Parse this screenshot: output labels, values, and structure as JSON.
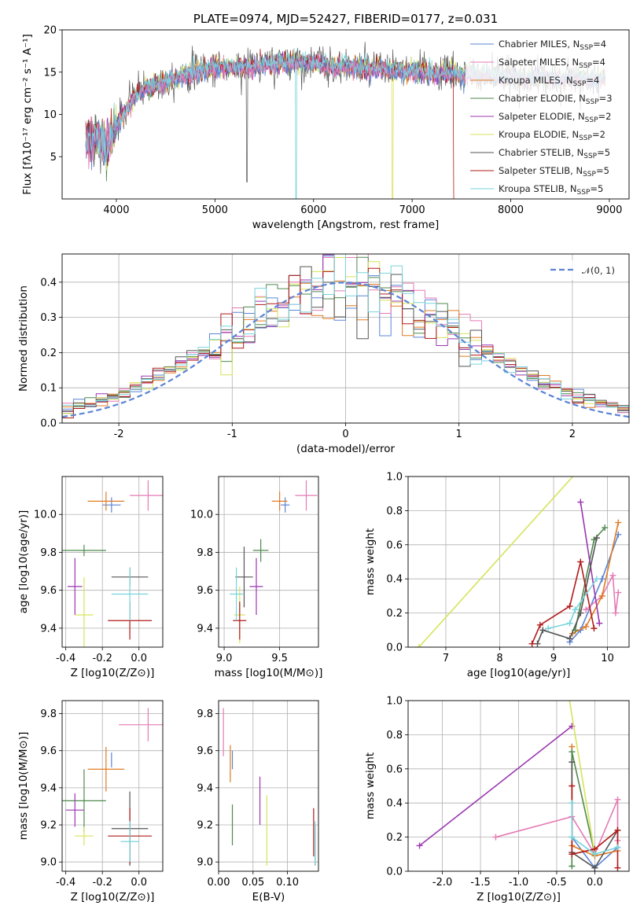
{
  "colors": [
    "#5b84d6",
    "#e57ab5",
    "#e07b22",
    "#4e8a4e",
    "#9b37b1",
    "#d7e35a",
    "#555555",
    "#b11a1a",
    "#78d4dc"
  ],
  "chart_data": [
    {
      "id": "spectrum",
      "type": "line",
      "title": "PLATE=0974, MJD=52427, FIBERID=0177, z=0.031",
      "xlabel": "wavelength [Angstrom, rest frame]",
      "ylabel": "Flux [fλ10⁻¹⁷ erg cm⁻² s⁻¹ A⁻¹]",
      "xlim": [
        3450,
        9200
      ],
      "ylim": [
        0,
        20
      ],
      "xticks": [
        4000,
        5000,
        6000,
        7000,
        8000,
        9000
      ],
      "yticks": [
        5,
        10,
        15,
        20
      ],
      "grid": false,
      "legend_position": "top-right",
      "series": [
        {
          "name": "Chabrier MILES, N_SSP=4"
        },
        {
          "name": "Salpeter MILES, N_SSP=4"
        },
        {
          "name": "Kroupa MILES, N_SSP=4"
        },
        {
          "name": "Chabrier ELODIE, N_SSP=3"
        },
        {
          "name": "Salpeter ELODIE, N_SSP=2"
        },
        {
          "name": "Kroupa ELODIE, N_SSP=2"
        },
        {
          "name": "Chabrier STELIB, N_SSP=5"
        },
        {
          "name": "Salpeter STELIB, N_SSP=5"
        },
        {
          "name": "Kroupa STELIB, N_SSP=5"
        }
      ],
      "continuum": {
        "x": [
          3700,
          3800,
          3900,
          4000,
          4100,
          4200,
          4300,
          4500,
          4700,
          5000,
          5300,
          5600,
          5900,
          6200,
          6500,
          6800,
          7100,
          7400,
          7700,
          8000,
          8300,
          8600,
          8900
        ],
        "y": [
          6.5,
          7.5,
          6.0,
          8.5,
          10.5,
          12.5,
          13.0,
          14.0,
          14.8,
          15.5,
          15.6,
          16.0,
          16.2,
          15.6,
          15.5,
          15.2,
          15.0,
          14.8,
          14.6,
          14.4,
          14.3,
          14.2,
          14.3
        ]
      }
    },
    {
      "id": "residual_hist",
      "type": "line",
      "xlabel": "(data-model)/error",
      "ylabel": "Normed distribution",
      "xlim": [
        -2.5,
        2.5
      ],
      "ylim": [
        0,
        0.48
      ],
      "xticks": [
        -2,
        -1,
        0,
        1,
        2
      ],
      "yticks": [
        0.0,
        0.1,
        0.2,
        0.3,
        0.4
      ],
      "grid": true,
      "legend_position": "top-right",
      "legend_label": "𝒩(0, 1)",
      "gaussian": {
        "mu": 0,
        "sigma": 1
      }
    },
    {
      "id": "age_vs_Z",
      "type": "scatter",
      "xlabel": "Z [log10(Z/Z⊙)]",
      "ylabel": "age  [log10(age/yr)]",
      "xlim": [
        -0.42,
        0.13
      ],
      "ylim": [
        9.3,
        10.2
      ],
      "xticks": [
        -0.4,
        -0.2,
        0.0
      ],
      "yticks": [
        9.4,
        9.6,
        9.8,
        10.0
      ],
      "grid": true,
      "points": [
        {
          "x": -0.15,
          "y": 10.05,
          "xerr": 0.05,
          "yerr": 0.04
        },
        {
          "x": 0.05,
          "y": 10.1,
          "xerr": 0.1,
          "yerr": 0.08
        },
        {
          "x": -0.18,
          "y": 10.07,
          "xerr": 0.1,
          "yerr": 0.05
        },
        {
          "x": -0.3,
          "y": 9.81,
          "xerr": 0.12,
          "yerr": 0.03
        },
        {
          "x": -0.35,
          "y": 9.62,
          "xerr": 0.04,
          "yerr": 0.15
        },
        {
          "x": -0.3,
          "y": 9.47,
          "xerr": 0.05,
          "yerr": 0.2
        },
        {
          "x": -0.05,
          "y": 9.67,
          "xerr": 0.1,
          "yerr": 0.05
        },
        {
          "x": -0.05,
          "y": 9.44,
          "xerr": 0.12,
          "yerr": 0.1
        },
        {
          "x": -0.05,
          "y": 9.58,
          "xerr": 0.1,
          "yerr": 0.14
        }
      ]
    },
    {
      "id": "age_vs_mass",
      "type": "scatter",
      "xlabel": "mass [log10(M/M⊙)]",
      "ylabel": "",
      "xlim": [
        8.95,
        9.85
      ],
      "ylim": [
        9.3,
        10.2
      ],
      "xticks": [
        9.0,
        9.5
      ],
      "yticks": [
        9.4,
        9.6,
        9.8,
        10.0
      ],
      "grid": true,
      "points": [
        {
          "x": 9.55,
          "y": 10.05,
          "xerr": 0.04,
          "yerr": 0.04
        },
        {
          "x": 9.74,
          "y": 10.1,
          "xerr": 0.1,
          "yerr": 0.08
        },
        {
          "x": 9.5,
          "y": 10.07,
          "xerr": 0.07,
          "yerr": 0.05
        },
        {
          "x": 9.33,
          "y": 9.81,
          "xerr": 0.07,
          "yerr": 0.06
        },
        {
          "x": 9.29,
          "y": 9.62,
          "xerr": 0.06,
          "yerr": 0.15
        },
        {
          "x": 9.14,
          "y": 9.47,
          "xerr": 0.05,
          "yerr": 0.15
        },
        {
          "x": 9.18,
          "y": 9.67,
          "xerr": 0.08,
          "yerr": 0.16
        },
        {
          "x": 9.14,
          "y": 9.44,
          "xerr": 0.06,
          "yerr": 0.1
        },
        {
          "x": 9.11,
          "y": 9.58,
          "xerr": 0.06,
          "yerr": 0.14
        }
      ]
    },
    {
      "id": "mass_weight_vs_age",
      "type": "line",
      "xlabel": "age  [log10(age/yr)]",
      "ylabel": "mass weight",
      "xlim": [
        6.3,
        10.4
      ],
      "ylim": [
        0,
        1.0
      ],
      "xticks": [
        7,
        8,
        9,
        10
      ],
      "yticks": [
        0.0,
        0.2,
        0.4,
        0.6,
        0.8,
        1.0
      ],
      "grid": true,
      "series": [
        {
          "x": [
            9.3,
            9.5,
            9.9,
            10.2
          ],
          "y": [
            0.03,
            0.1,
            0.4,
            0.66
          ]
        },
        {
          "x": [
            9.6,
            9.9,
            10.1,
            10.15,
            10.2
          ],
          "y": [
            0.22,
            0.3,
            0.42,
            0.2,
            0.32
          ]
        },
        {
          "x": [
            9.35,
            9.6,
            9.9,
            10.2
          ],
          "y": [
            0.08,
            0.12,
            0.3,
            0.73
          ]
        },
        {
          "x": [
            9.4,
            9.75,
            9.95
          ],
          "y": [
            0.1,
            0.63,
            0.7
          ]
        },
        {
          "x": [
            9.5,
            9.85
          ],
          "y": [
            0.85,
            0.14
          ]
        },
        {
          "x": [
            6.5,
            9.5
          ],
          "y": [
            0.0,
            1.05
          ]
        },
        {
          "x": [
            8.7,
            8.8,
            9.3,
            9.5,
            9.8
          ],
          "y": [
            0.02,
            0.1,
            0.05,
            0.2,
            0.64
          ]
        },
        {
          "x": [
            8.6,
            8.75,
            9.3,
            9.5,
            9.75
          ],
          "y": [
            0.02,
            0.13,
            0.24,
            0.5,
            0.11
          ]
        },
        {
          "x": [
            8.9,
            9.3,
            9.4,
            9.8
          ],
          "y": [
            0.11,
            0.14,
            0.22,
            0.4
          ]
        }
      ]
    },
    {
      "id": "mass_vs_Z",
      "type": "scatter",
      "xlabel": "Z [log10(Z/Z⊙)]",
      "ylabel": "mass [log10(M/M⊙)]",
      "xlim": [
        -0.42,
        0.13
      ],
      "ylim": [
        8.95,
        9.87
      ],
      "xticks": [
        -0.4,
        -0.2,
        0.0
      ],
      "yticks": [
        9.0,
        9.2,
        9.4,
        9.6,
        9.8
      ],
      "grid": true,
      "points": [
        {
          "x": -0.15,
          "y": 9.55,
          "xerr": 0.0,
          "yerr": 0.04
        },
        {
          "x": 0.05,
          "y": 9.74,
          "xerr": 0.16,
          "yerr": 0.09
        },
        {
          "x": -0.18,
          "y": 9.5,
          "xerr": 0.1,
          "yerr": 0.12
        },
        {
          "x": -0.3,
          "y": 9.33,
          "xerr": 0.12,
          "yerr": 0.17
        },
        {
          "x": -0.35,
          "y": 9.28,
          "xerr": 0.05,
          "yerr": 0.09
        },
        {
          "x": -0.3,
          "y": 9.14,
          "xerr": 0.05,
          "yerr": 0.05
        },
        {
          "x": -0.05,
          "y": 9.18,
          "xerr": 0.1,
          "yerr": 0.2
        },
        {
          "x": -0.05,
          "y": 9.14,
          "xerr": 0.12,
          "yerr": 0.15
        },
        {
          "x": -0.05,
          "y": 9.11,
          "xerr": 0.05,
          "yerr": 0.11
        }
      ]
    },
    {
      "id": "mass_vs_ebv",
      "type": "scatter",
      "xlabel": "E(B-V)",
      "ylabel": "",
      "xlim": [
        0.0,
        0.145
      ],
      "ylim": [
        8.95,
        9.87
      ],
      "xticks": [
        0.0,
        0.05,
        0.1
      ],
      "yticks": [
        9.0,
        9.2,
        9.4,
        9.6,
        9.8
      ],
      "grid": true,
      "points": [
        {
          "x": 0.02,
          "y": 9.55,
          "yerr": 0.05
        },
        {
          "x": 0.007,
          "y": 9.7,
          "yerr": 0.13
        },
        {
          "x": 0.017,
          "y": 9.53,
          "yerr": 0.1
        },
        {
          "x": 0.02,
          "y": 9.2,
          "yerr": 0.11
        },
        {
          "x": 0.06,
          "y": 9.33,
          "yerr": 0.13
        },
        {
          "x": 0.07,
          "y": 9.17,
          "yerr": 0.19
        },
        {
          "x": 0.14,
          "y": 9.09,
          "yerr": 0.11
        },
        {
          "x": 0.138,
          "y": 9.16,
          "yerr": 0.13
        },
        {
          "x": 0.14,
          "y": 9.1,
          "yerr": 0.12
        }
      ]
    },
    {
      "id": "mass_weight_vs_Z",
      "type": "line",
      "xlabel": "Z [log10(Z/Z⊙)]",
      "ylabel": "mass weight",
      "xlim": [
        -2.45,
        0.45
      ],
      "ylim": [
        0,
        1.0
      ],
      "xticks": [
        -2.0,
        -1.5,
        -1.0,
        -0.5,
        0.0
      ],
      "yticks": [
        0.0,
        0.2,
        0.4,
        0.6,
        0.8,
        1.0
      ],
      "grid": true,
      "series": [
        {
          "x": [
            -0.3,
            0.0,
            0.3
          ],
          "y": [
            0.2,
            0.02,
            0.14
          ]
        },
        {
          "x": [
            -1.3,
            -0.3,
            0.0,
            0.3,
            0.3
          ],
          "y": [
            0.2,
            0.32,
            0.1,
            0.42,
            0.18
          ]
        },
        {
          "x": [
            -0.3,
            -0.3,
            0.0,
            0.3
          ],
          "y": [
            0.73,
            0.15,
            0.09,
            0.12
          ]
        },
        {
          "x": [
            -0.3,
            -0.3,
            0.0
          ],
          "y": [
            0.03,
            0.7,
            0.1
          ]
        },
        {
          "x": [
            -2.3,
            -0.3
          ],
          "y": [
            0.15,
            0.85
          ]
        },
        {
          "x": [
            -0.35,
            0.0
          ],
          "y": [
            1.05,
            0.1
          ]
        },
        {
          "x": [
            -0.3,
            -0.3,
            0.0,
            0.3
          ],
          "y": [
            0.64,
            0.11,
            0.02,
            0.24
          ]
        },
        {
          "x": [
            -0.3,
            -0.3,
            0.0,
            0.3,
            0.3
          ],
          "y": [
            0.5,
            0.1,
            0.13,
            0.24,
            0.02
          ]
        },
        {
          "x": [
            -0.3,
            -0.3,
            0.0,
            0.3
          ],
          "y": [
            0.4,
            0.2,
            0.1,
            0.14
          ]
        }
      ]
    }
  ]
}
